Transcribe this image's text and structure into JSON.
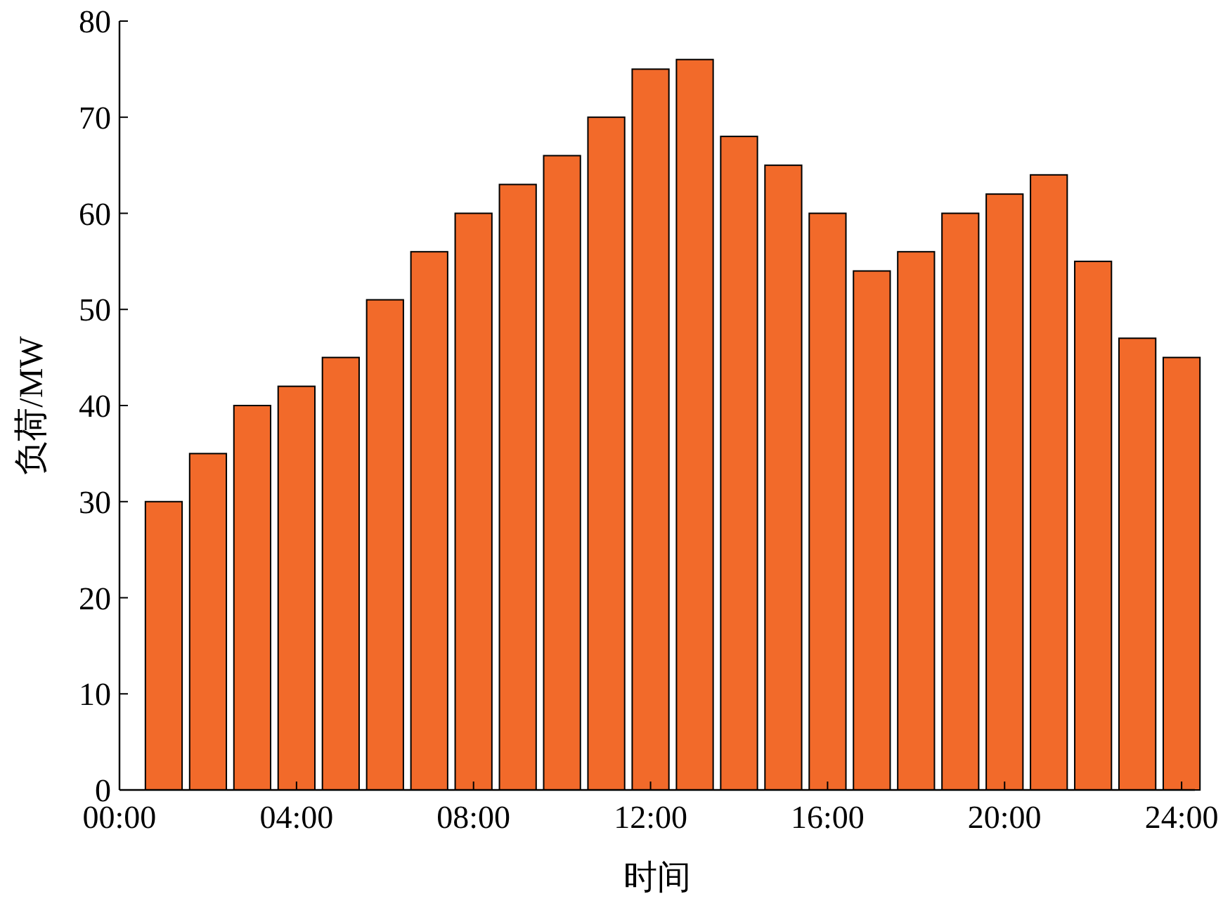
{
  "chart_data": {
    "type": "bar",
    "xlabel": "时间",
    "ylabel": "负荷/MW",
    "x": [
      1,
      2,
      3,
      4,
      5,
      6,
      7,
      8,
      9,
      10,
      11,
      12,
      13,
      14,
      15,
      16,
      17,
      18,
      19,
      20,
      21,
      22,
      23,
      24
    ],
    "values": [
      30,
      35,
      40,
      42,
      45,
      51,
      56,
      60,
      63,
      66,
      70,
      75,
      76,
      68,
      65,
      60,
      54,
      56,
      60,
      62,
      64,
      55,
      47,
      45
    ],
    "color": "#f26a2a",
    "xlim": [
      0,
      24.3
    ],
    "xticks": [
      {
        "value": 0,
        "label": "00:00"
      },
      {
        "value": 4,
        "label": "04:00"
      },
      {
        "value": 8,
        "label": "08:00"
      },
      {
        "value": 12,
        "label": "12:00"
      },
      {
        "value": 16,
        "label": "16:00"
      },
      {
        "value": 20,
        "label": "20:00"
      },
      {
        "value": 24,
        "label": "24:00"
      }
    ],
    "ylim": [
      0,
      80
    ],
    "yticks": [
      0,
      10,
      20,
      30,
      40,
      50,
      60,
      70,
      80
    ]
  }
}
